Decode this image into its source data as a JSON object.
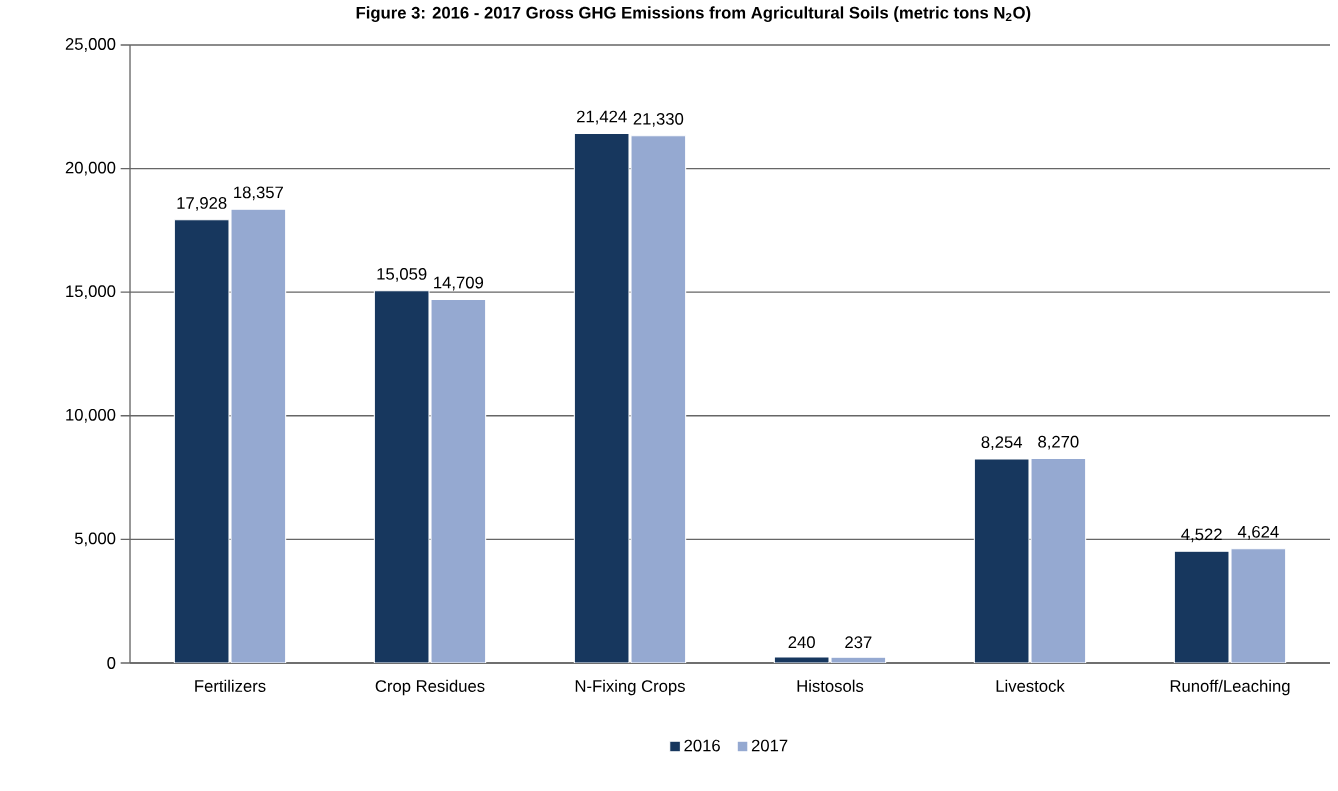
{
  "chart_data": {
    "type": "bar",
    "title": "Figure 3: 2016 - 2017 Gross GHG Emissions from Agricultural Soils (metric tons N$_{2}$O)",
    "categories": [
      "Fertilizers",
      "Crop Residues",
      "N-Fixing Crops",
      "Histosols",
      "Livestock",
      "Runoff/Leaching"
    ],
    "series": [
      {
        "name": "2016",
        "color": "#17375e",
        "values": [
          17928,
          15059,
          21424,
          240,
          8254,
          4522
        ],
        "value_labels": [
          "17,928",
          "15,059",
          "21,424",
          "240",
          "8,254",
          "4,522"
        ]
      },
      {
        "name": "2017",
        "color": "#95a9d1",
        "values": [
          18357,
          14709,
          21330,
          237,
          8270,
          4624
        ],
        "value_labels": [
          "18,357",
          "14,709",
          "21,330",
          "237",
          "8,270",
          "4,624"
        ]
      }
    ],
    "ylim": [
      0,
      25000
    ],
    "yticks": [
      {
        "value": 0,
        "label": "0"
      },
      {
        "value": 5000,
        "label": "5,000"
      },
      {
        "value": 10000,
        "label": "10,000"
      },
      {
        "value": 15000,
        "label": "15,000"
      },
      {
        "value": 20000,
        "label": "20,000"
      },
      {
        "value": 25000,
        "label": "25,000"
      }
    ],
    "grid": "y",
    "legend": "bottom"
  }
}
